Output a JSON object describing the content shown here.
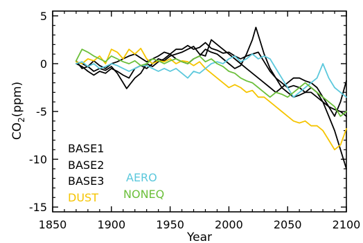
{
  "chart_data": {
    "type": "line",
    "title": "",
    "xlabel": "Year",
    "ylabel": {
      "main": "CO",
      "sub": "2",
      "rest": "(ppm)"
    },
    "xlim": [
      1850,
      2100
    ],
    "ylim": [
      -15.5,
      5.5
    ],
    "xticks": [
      1850,
      1900,
      1950,
      2000,
      2050,
      2100
    ],
    "yticks": [
      5,
      0,
      -5,
      -10,
      -15
    ],
    "x_tick_labels": [
      "1850",
      "1900",
      "1950",
      "2000",
      "2050",
      "2100"
    ],
    "y_tick_labels": [
      "5",
      "0",
      "-5",
      "-10",
      "-15"
    ],
    "grid": false,
    "legend_placement": "bottom-left",
    "series": [
      {
        "name": "BASE1",
        "color": "#000000",
        "x": [
          1870,
          1875,
          1880,
          1885,
          1890,
          1895,
          1900,
          1905,
          1910,
          1913,
          1920,
          1925,
          1930,
          1935,
          1940,
          1945,
          1950,
          1955,
          1960,
          1965,
          1970,
          1975,
          1980,
          1985,
          1990,
          1995,
          2000,
          2005,
          2010,
          2015,
          2020,
          2025,
          2030,
          2035,
          2040,
          2045,
          2050,
          2055,
          2060,
          2065,
          2070,
          2075,
          2080,
          2085,
          2090,
          2095,
          2100
        ],
        "y": [
          0.3,
          -0.5,
          -0.3,
          -0.8,
          -0.5,
          -0.7,
          -0.3,
          -1.0,
          -2.0,
          -2.6,
          -1.5,
          -1.0,
          0.0,
          -0.3,
          0.2,
          0.5,
          1.0,
          1.5,
          1.5,
          1.9,
          1.5,
          1.7,
          2.2,
          1.6,
          1.4,
          1.1,
          1.2,
          0.8,
          0.5,
          0.8,
          1.0,
          1.2,
          0.2,
          -0.8,
          -1.5,
          -2.5,
          -3.0,
          -3.5,
          -3.3,
          -3.0,
          -2.5,
          -3.0,
          -4.0,
          -5.5,
          -7.0,
          -9.0,
          -11.0
        ]
      },
      {
        "name": "BASE2",
        "color": "#000000",
        "x": [
          1870,
          1875,
          1880,
          1885,
          1890,
          1895,
          1900,
          1905,
          1910,
          1915,
          1920,
          1925,
          1930,
          1935,
          1940,
          1945,
          1950,
          1955,
          1960,
          1965,
          1970,
          1975,
          1980,
          1985,
          1990,
          1995,
          2000,
          2005,
          2010,
          2015,
          2020,
          2023,
          2025,
          2030,
          2035,
          2040,
          2045,
          2050,
          2055,
          2060,
          2065,
          2070,
          2075,
          2080,
          2085,
          2090,
          2095,
          2100
        ],
        "y": [
          0.2,
          0.0,
          -0.3,
          0.3,
          -0.2,
          -0.5,
          0.0,
          0.2,
          0.5,
          0.8,
          1.0,
          0.6,
          0.2,
          0.5,
          0.8,
          1.2,
          1.0,
          0.5,
          0.2,
          0.0,
          0.5,
          0.8,
          1.5,
          1.2,
          1.0,
          0.5,
          0.0,
          -0.5,
          -0.2,
          1.0,
          2.5,
          3.8,
          3.0,
          1.0,
          -0.5,
          -1.5,
          -2.0,
          -2.5,
          -2.3,
          -2.5,
          -3.0,
          -3.0,
          -3.5,
          -4.0,
          -4.5,
          -4.8,
          -5.0,
          -5.5
        ]
      },
      {
        "name": "BASE3",
        "color": "#000000",
        "x": [
          1870,
          1875,
          1880,
          1885,
          1890,
          1895,
          1900,
          1905,
          1910,
          1915,
          1920,
          1925,
          1930,
          1935,
          1940,
          1945,
          1950,
          1955,
          1960,
          1965,
          1970,
          1975,
          1980,
          1985,
          1990,
          1995,
          2000,
          2005,
          2010,
          2015,
          2020,
          2025,
          2030,
          2035,
          2040,
          2045,
          2050,
          2055,
          2060,
          2065,
          2070,
          2075,
          2080,
          2085,
          2090,
          2095,
          2100
        ],
        "y": [
          0.0,
          -0.3,
          -0.8,
          -1.2,
          -0.8,
          -1.0,
          -0.5,
          -0.8,
          -1.2,
          -1.5,
          -0.5,
          -0.2,
          -0.5,
          0.0,
          0.5,
          0.3,
          0.8,
          1.0,
          1.2,
          1.5,
          1.8,
          1.0,
          0.8,
          2.5,
          2.0,
          1.5,
          1.0,
          0.5,
          0.0,
          -0.5,
          -1.0,
          -1.5,
          -2.0,
          -2.5,
          -3.0,
          -2.5,
          -2.0,
          -1.5,
          -1.5,
          -1.8,
          -2.0,
          -2.5,
          -3.5,
          -4.5,
          -5.5,
          -4.0,
          -1.8
        ]
      },
      {
        "name": "DUST",
        "color": "#f5c400",
        "x": [
          1870,
          1875,
          1880,
          1885,
          1890,
          1895,
          1900,
          1905,
          1910,
          1915,
          1920,
          1925,
          1930,
          1935,
          1940,
          1945,
          1950,
          1955,
          1960,
          1965,
          1970,
          1975,
          1980,
          1985,
          1990,
          1995,
          2000,
          2005,
          2010,
          2015,
          2020,
          2025,
          2030,
          2035,
          2040,
          2045,
          2050,
          2055,
          2060,
          2065,
          2070,
          2075,
          2080,
          2085,
          2090,
          2095,
          2100
        ],
        "y": [
          0.2,
          0.0,
          0.5,
          0.3,
          0.8,
          0.0,
          1.5,
          1.2,
          0.5,
          1.5,
          1.0,
          1.6,
          0.5,
          0.0,
          0.3,
          0.2,
          0.5,
          0.0,
          0.3,
          0.2,
          -0.2,
          0.2,
          -0.5,
          -1.0,
          -1.5,
          -2.0,
          -2.5,
          -2.2,
          -2.5,
          -3.0,
          -2.8,
          -3.5,
          -3.5,
          -4.0,
          -4.5,
          -5.0,
          -5.5,
          -6.0,
          -6.2,
          -6.0,
          -6.5,
          -6.5,
          -7.0,
          -8.0,
          -9.0,
          -8.5,
          -6.8
        ]
      },
      {
        "name": "AERO",
        "color": "#5bc8dc",
        "x": [
          1870,
          1875,
          1880,
          1885,
          1890,
          1895,
          1900,
          1905,
          1910,
          1915,
          1920,
          1925,
          1930,
          1935,
          1940,
          1945,
          1950,
          1955,
          1960,
          1965,
          1970,
          1975,
          1980,
          1985,
          1990,
          1995,
          2000,
          2005,
          2010,
          2015,
          2020,
          2025,
          2030,
          2035,
          2040,
          2045,
          2050,
          2055,
          2060,
          2065,
          2070,
          2075,
          2080,
          2085,
          2090,
          2095,
          2100
        ],
        "y": [
          0.0,
          0.2,
          -0.3,
          0.0,
          -0.5,
          -0.3,
          0.0,
          -0.2,
          -0.5,
          -0.8,
          -0.5,
          -0.2,
          -0.2,
          -0.5,
          -0.8,
          -0.5,
          -0.8,
          -0.5,
          -1.0,
          -1.5,
          -0.8,
          -1.0,
          -0.5,
          0.0,
          0.2,
          0.0,
          0.5,
          0.8,
          0.2,
          0.5,
          1.0,
          0.5,
          0.8,
          0.5,
          -0.5,
          -1.5,
          -2.5,
          -3.5,
          -3.0,
          -2.5,
          -2.0,
          -1.5,
          0.0,
          -1.5,
          -2.5,
          -3.0,
          -3.5
        ]
      },
      {
        "name": "NONEQ",
        "color": "#6bbf3a",
        "x": [
          1870,
          1875,
          1880,
          1885,
          1890,
          1895,
          1900,
          1905,
          1910,
          1915,
          1920,
          1925,
          1930,
          1935,
          1940,
          1945,
          1950,
          1955,
          1960,
          1965,
          1970,
          1975,
          1980,
          1985,
          1990,
          1995,
          2000,
          2005,
          2010,
          2015,
          2020,
          2025,
          2030,
          2035,
          2040,
          2045,
          2050,
          2055,
          2060,
          2065,
          2070,
          2075,
          2080,
          2085,
          2090,
          2095,
          2100
        ],
        "y": [
          0.3,
          1.5,
          1.2,
          0.8,
          0.5,
          0.2,
          0.8,
          0.5,
          0.2,
          0.0,
          0.3,
          -0.2,
          0.0,
          0.5,
          0.3,
          0.0,
          0.3,
          0.5,
          0.2,
          0.0,
          0.5,
          0.8,
          0.2,
          0.5,
          0.0,
          -0.3,
          -0.8,
          -1.0,
          -1.5,
          -1.8,
          -2.0,
          -2.5,
          -3.0,
          -3.5,
          -3.0,
          -3.2,
          -3.5,
          -3.0,
          -2.5,
          -2.0,
          -2.5,
          -3.0,
          -3.5,
          -4.0,
          -4.5,
          -5.5,
          -5.0
        ]
      }
    ]
  }
}
